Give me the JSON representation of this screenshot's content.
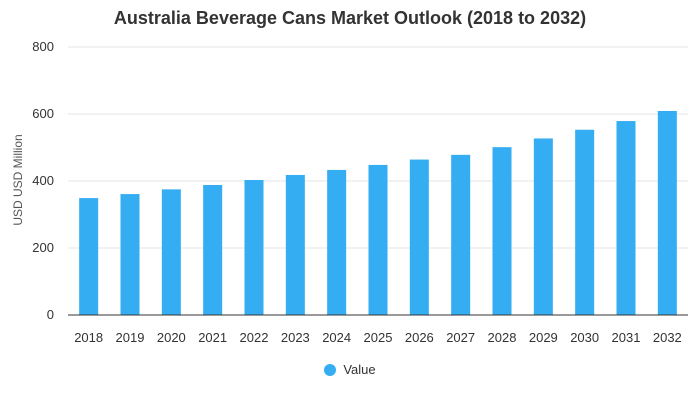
{
  "chart_data": {
    "type": "bar",
    "title": "Australia Beverage Cans Market Outlook (2018 to 2032)",
    "xlabel": "",
    "ylabel": "USD USD Million",
    "categories": [
      "2018",
      "2019",
      "2020",
      "2021",
      "2022",
      "2023",
      "2024",
      "2025",
      "2026",
      "2027",
      "2028",
      "2029",
      "2030",
      "2031",
      "2032"
    ],
    "series": [
      {
        "name": "Value",
        "values": [
          349,
          361,
          375,
          388,
          403,
          418,
          433,
          448,
          464,
          478,
          501,
          527,
          553,
          579,
          609
        ]
      }
    ],
    "ylim": [
      0,
      800
    ],
    "yticks": [
      0,
      200,
      400,
      600,
      800
    ],
    "grid": true,
    "legend": "bottom",
    "colors": {
      "bar": "#35adf2",
      "grid": "#e6e6e6",
      "axis": "#333333"
    }
  }
}
